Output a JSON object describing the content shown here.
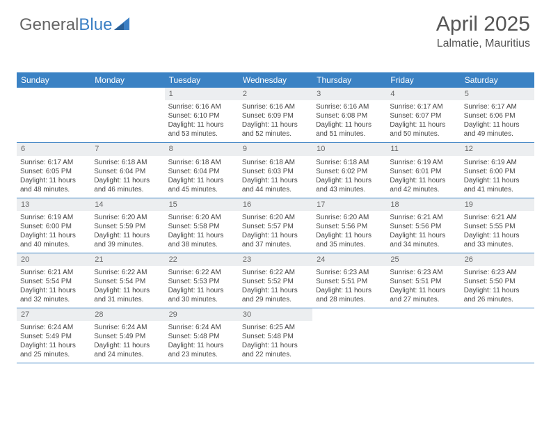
{
  "logo": {
    "part1": "General",
    "part2": "Blue"
  },
  "header": {
    "month": "April 2025",
    "location": "Lalmatie, Mauritius"
  },
  "dayNames": [
    "Sunday",
    "Monday",
    "Tuesday",
    "Wednesday",
    "Thursday",
    "Friday",
    "Saturday"
  ],
  "colors": {
    "headerBlue": "#3b82c4",
    "dayNumBg": "#eceef0",
    "text": "#444444",
    "logoGray": "#666666",
    "logoBlue": "#3b7fc4"
  },
  "weeks": [
    [
      {
        "empty": true
      },
      {
        "empty": true
      },
      {
        "num": "1",
        "sunrise": "Sunrise: 6:16 AM",
        "sunset": "Sunset: 6:10 PM",
        "day1": "Daylight: 11 hours",
        "day2": "and 53 minutes."
      },
      {
        "num": "2",
        "sunrise": "Sunrise: 6:16 AM",
        "sunset": "Sunset: 6:09 PM",
        "day1": "Daylight: 11 hours",
        "day2": "and 52 minutes."
      },
      {
        "num": "3",
        "sunrise": "Sunrise: 6:16 AM",
        "sunset": "Sunset: 6:08 PM",
        "day1": "Daylight: 11 hours",
        "day2": "and 51 minutes."
      },
      {
        "num": "4",
        "sunrise": "Sunrise: 6:17 AM",
        "sunset": "Sunset: 6:07 PM",
        "day1": "Daylight: 11 hours",
        "day2": "and 50 minutes."
      },
      {
        "num": "5",
        "sunrise": "Sunrise: 6:17 AM",
        "sunset": "Sunset: 6:06 PM",
        "day1": "Daylight: 11 hours",
        "day2": "and 49 minutes."
      }
    ],
    [
      {
        "num": "6",
        "sunrise": "Sunrise: 6:17 AM",
        "sunset": "Sunset: 6:05 PM",
        "day1": "Daylight: 11 hours",
        "day2": "and 48 minutes."
      },
      {
        "num": "7",
        "sunrise": "Sunrise: 6:18 AM",
        "sunset": "Sunset: 6:04 PM",
        "day1": "Daylight: 11 hours",
        "day2": "and 46 minutes."
      },
      {
        "num": "8",
        "sunrise": "Sunrise: 6:18 AM",
        "sunset": "Sunset: 6:04 PM",
        "day1": "Daylight: 11 hours",
        "day2": "and 45 minutes."
      },
      {
        "num": "9",
        "sunrise": "Sunrise: 6:18 AM",
        "sunset": "Sunset: 6:03 PM",
        "day1": "Daylight: 11 hours",
        "day2": "and 44 minutes."
      },
      {
        "num": "10",
        "sunrise": "Sunrise: 6:18 AM",
        "sunset": "Sunset: 6:02 PM",
        "day1": "Daylight: 11 hours",
        "day2": "and 43 minutes."
      },
      {
        "num": "11",
        "sunrise": "Sunrise: 6:19 AM",
        "sunset": "Sunset: 6:01 PM",
        "day1": "Daylight: 11 hours",
        "day2": "and 42 minutes."
      },
      {
        "num": "12",
        "sunrise": "Sunrise: 6:19 AM",
        "sunset": "Sunset: 6:00 PM",
        "day1": "Daylight: 11 hours",
        "day2": "and 41 minutes."
      }
    ],
    [
      {
        "num": "13",
        "sunrise": "Sunrise: 6:19 AM",
        "sunset": "Sunset: 6:00 PM",
        "day1": "Daylight: 11 hours",
        "day2": "and 40 minutes."
      },
      {
        "num": "14",
        "sunrise": "Sunrise: 6:20 AM",
        "sunset": "Sunset: 5:59 PM",
        "day1": "Daylight: 11 hours",
        "day2": "and 39 minutes."
      },
      {
        "num": "15",
        "sunrise": "Sunrise: 6:20 AM",
        "sunset": "Sunset: 5:58 PM",
        "day1": "Daylight: 11 hours",
        "day2": "and 38 minutes."
      },
      {
        "num": "16",
        "sunrise": "Sunrise: 6:20 AM",
        "sunset": "Sunset: 5:57 PM",
        "day1": "Daylight: 11 hours",
        "day2": "and 37 minutes."
      },
      {
        "num": "17",
        "sunrise": "Sunrise: 6:20 AM",
        "sunset": "Sunset: 5:56 PM",
        "day1": "Daylight: 11 hours",
        "day2": "and 35 minutes."
      },
      {
        "num": "18",
        "sunrise": "Sunrise: 6:21 AM",
        "sunset": "Sunset: 5:56 PM",
        "day1": "Daylight: 11 hours",
        "day2": "and 34 minutes."
      },
      {
        "num": "19",
        "sunrise": "Sunrise: 6:21 AM",
        "sunset": "Sunset: 5:55 PM",
        "day1": "Daylight: 11 hours",
        "day2": "and 33 minutes."
      }
    ],
    [
      {
        "num": "20",
        "sunrise": "Sunrise: 6:21 AM",
        "sunset": "Sunset: 5:54 PM",
        "day1": "Daylight: 11 hours",
        "day2": "and 32 minutes."
      },
      {
        "num": "21",
        "sunrise": "Sunrise: 6:22 AM",
        "sunset": "Sunset: 5:54 PM",
        "day1": "Daylight: 11 hours",
        "day2": "and 31 minutes."
      },
      {
        "num": "22",
        "sunrise": "Sunrise: 6:22 AM",
        "sunset": "Sunset: 5:53 PM",
        "day1": "Daylight: 11 hours",
        "day2": "and 30 minutes."
      },
      {
        "num": "23",
        "sunrise": "Sunrise: 6:22 AM",
        "sunset": "Sunset: 5:52 PM",
        "day1": "Daylight: 11 hours",
        "day2": "and 29 minutes."
      },
      {
        "num": "24",
        "sunrise": "Sunrise: 6:23 AM",
        "sunset": "Sunset: 5:51 PM",
        "day1": "Daylight: 11 hours",
        "day2": "and 28 minutes."
      },
      {
        "num": "25",
        "sunrise": "Sunrise: 6:23 AM",
        "sunset": "Sunset: 5:51 PM",
        "day1": "Daylight: 11 hours",
        "day2": "and 27 minutes."
      },
      {
        "num": "26",
        "sunrise": "Sunrise: 6:23 AM",
        "sunset": "Sunset: 5:50 PM",
        "day1": "Daylight: 11 hours",
        "day2": "and 26 minutes."
      }
    ],
    [
      {
        "num": "27",
        "sunrise": "Sunrise: 6:24 AM",
        "sunset": "Sunset: 5:49 PM",
        "day1": "Daylight: 11 hours",
        "day2": "and 25 minutes."
      },
      {
        "num": "28",
        "sunrise": "Sunrise: 6:24 AM",
        "sunset": "Sunset: 5:49 PM",
        "day1": "Daylight: 11 hours",
        "day2": "and 24 minutes."
      },
      {
        "num": "29",
        "sunrise": "Sunrise: 6:24 AM",
        "sunset": "Sunset: 5:48 PM",
        "day1": "Daylight: 11 hours",
        "day2": "and 23 minutes."
      },
      {
        "num": "30",
        "sunrise": "Sunrise: 6:25 AM",
        "sunset": "Sunset: 5:48 PM",
        "day1": "Daylight: 11 hours",
        "day2": "and 22 minutes."
      },
      {
        "empty": true
      },
      {
        "empty": true
      },
      {
        "empty": true
      }
    ]
  ]
}
